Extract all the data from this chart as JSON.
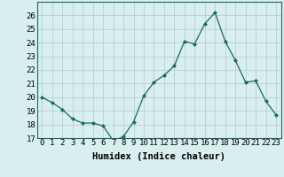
{
  "x": [
    0,
    1,
    2,
    3,
    4,
    5,
    6,
    7,
    8,
    9,
    10,
    11,
    12,
    13,
    14,
    15,
    16,
    17,
    18,
    19,
    20,
    21,
    22,
    23
  ],
  "y": [
    20.0,
    19.6,
    19.1,
    18.4,
    18.1,
    18.1,
    17.9,
    16.8,
    17.1,
    18.2,
    20.1,
    21.1,
    21.6,
    22.3,
    24.1,
    23.9,
    25.4,
    26.2,
    24.1,
    22.7,
    21.1,
    21.2,
    19.7,
    18.7
  ],
  "line_color": "#1a6b5a",
  "marker": "D",
  "marker_size": 2,
  "bg_color": "#d9eeee",
  "grid_color": "#b0cccc",
  "xlabel": "Humidex (Indice chaleur)",
  "ylim": [
    17,
    27
  ],
  "yticks": [
    17,
    18,
    19,
    20,
    21,
    22,
    23,
    24,
    25,
    26
  ],
  "xticks": [
    0,
    1,
    2,
    3,
    4,
    5,
    6,
    7,
    8,
    9,
    10,
    11,
    12,
    13,
    14,
    15,
    16,
    17,
    18,
    19,
    20,
    21,
    22,
    23
  ],
  "xlabel_fontsize": 7.5,
  "tick_fontsize": 6.5
}
